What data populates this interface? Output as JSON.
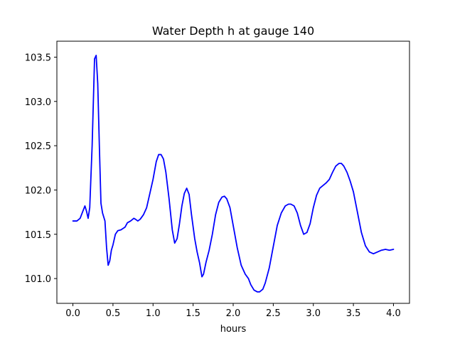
{
  "chart_data": {
    "type": "line",
    "title": "Water Depth h at gauge 140",
    "xlabel": "hours",
    "ylabel": "",
    "xlim": [
      -0.2,
      4.2
    ],
    "ylim": [
      100.72,
      103.68
    ],
    "xticks": [
      0.0,
      0.5,
      1.0,
      1.5,
      2.0,
      2.5,
      3.0,
      3.5,
      4.0
    ],
    "xtick_labels": [
      "0.0",
      "0.5",
      "1.0",
      "1.5",
      "2.0",
      "2.5",
      "3.0",
      "3.5",
      "4.0"
    ],
    "yticks": [
      101.0,
      101.5,
      102.0,
      102.5,
      103.0,
      103.5
    ],
    "ytick_labels": [
      "101.0",
      "101.5",
      "102.0",
      "102.5",
      "103.0",
      "103.5"
    ],
    "grid": false,
    "series": [
      {
        "color": "#0000ff",
        "x": [
          0.0,
          0.05,
          0.09,
          0.12,
          0.15,
          0.17,
          0.19,
          0.21,
          0.24,
          0.27,
          0.29,
          0.31,
          0.33,
          0.35,
          0.37,
          0.4,
          0.42,
          0.44,
          0.46,
          0.48,
          0.5,
          0.53,
          0.56,
          0.6,
          0.65,
          0.68,
          0.72,
          0.76,
          0.78,
          0.81,
          0.84,
          0.88,
          0.92,
          0.96,
          1.0,
          1.04,
          1.07,
          1.1,
          1.13,
          1.16,
          1.2,
          1.24,
          1.27,
          1.3,
          1.33,
          1.36,
          1.39,
          1.42,
          1.45,
          1.48,
          1.52,
          1.55,
          1.58,
          1.61,
          1.63,
          1.66,
          1.7,
          1.74,
          1.78,
          1.82,
          1.86,
          1.89,
          1.92,
          1.96,
          2.0,
          2.05,
          2.1,
          2.15,
          2.19,
          2.22,
          2.26,
          2.3,
          2.33,
          2.37,
          2.4,
          2.45,
          2.5,
          2.55,
          2.6,
          2.65,
          2.69,
          2.72,
          2.76,
          2.8,
          2.84,
          2.88,
          2.92,
          2.96,
          3.0,
          3.04,
          3.08,
          3.12,
          3.16,
          3.2,
          3.24,
          3.28,
          3.32,
          3.35,
          3.38,
          3.42,
          3.46,
          3.5,
          3.55,
          3.6,
          3.65,
          3.7,
          3.75,
          3.8,
          3.85,
          3.9,
          3.95,
          4.0
        ],
        "y": [
          101.65,
          101.65,
          101.68,
          101.75,
          101.82,
          101.76,
          101.68,
          101.8,
          102.5,
          103.48,
          103.52,
          103.2,
          102.5,
          101.85,
          101.74,
          101.65,
          101.35,
          101.15,
          101.2,
          101.32,
          101.38,
          101.5,
          101.54,
          101.55,
          101.58,
          101.63,
          101.65,
          101.68,
          101.67,
          101.65,
          101.67,
          101.72,
          101.8,
          101.96,
          102.12,
          102.32,
          102.4,
          102.4,
          102.35,
          102.2,
          101.9,
          101.55,
          101.4,
          101.45,
          101.62,
          101.82,
          101.96,
          102.02,
          101.95,
          101.72,
          101.45,
          101.3,
          101.18,
          101.02,
          101.05,
          101.18,
          101.32,
          101.5,
          101.72,
          101.86,
          101.92,
          101.93,
          101.9,
          101.8,
          101.6,
          101.35,
          101.15,
          101.05,
          101.0,
          100.93,
          100.87,
          100.85,
          100.85,
          100.88,
          100.95,
          101.12,
          101.36,
          101.6,
          101.74,
          101.82,
          101.84,
          101.84,
          101.82,
          101.74,
          101.6,
          101.5,
          101.52,
          101.62,
          101.8,
          101.94,
          102.02,
          102.05,
          102.08,
          102.12,
          102.2,
          102.27,
          102.3,
          102.3,
          102.27,
          102.2,
          102.1,
          101.98,
          101.75,
          101.52,
          101.37,
          101.3,
          101.28,
          101.3,
          101.32,
          101.33,
          101.32,
          101.33
        ]
      }
    ]
  }
}
